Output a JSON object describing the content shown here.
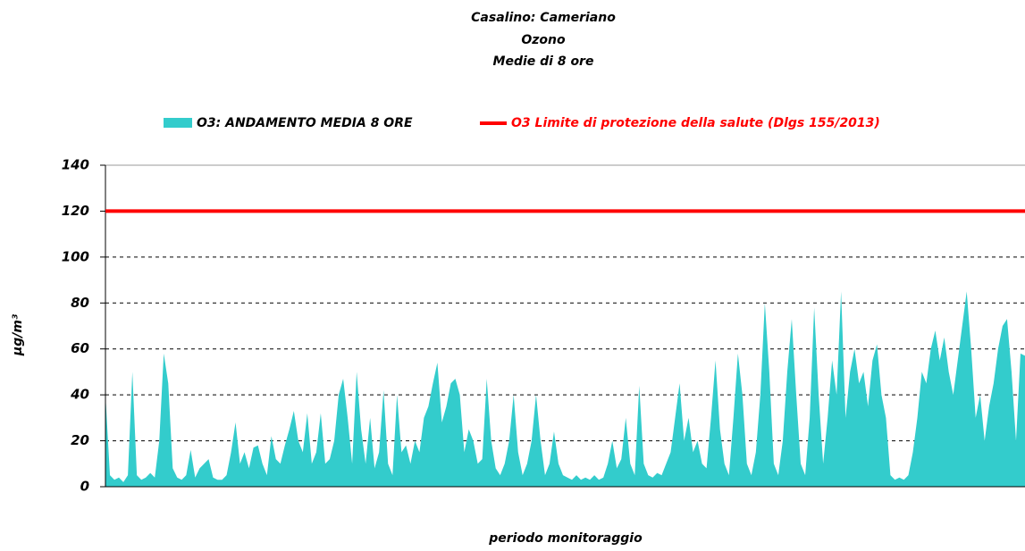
{
  "chart_data": {
    "type": "area",
    "title": "Casalino: Cameriano",
    "subtitle": [
      "Ozono",
      "Medie di 8 ore"
    ],
    "xlabel": "periodo monitoraggio",
    "ylabel": "µg/m³",
    "ylim": [
      0,
      140
    ],
    "yticks": [
      0,
      20,
      40,
      60,
      80,
      100,
      120,
      140
    ],
    "grid": true,
    "series": [
      {
        "name": "O3: ANDAMENTO MEDIA 8 ORE",
        "color": "#33cccc",
        "values": [
          40,
          5,
          3,
          4,
          2,
          5,
          50,
          5,
          3,
          4,
          6,
          4,
          20,
          58,
          45,
          8,
          4,
          3,
          5,
          16,
          4,
          8,
          10,
          12,
          4,
          3,
          3,
          5,
          15,
          28,
          10,
          15,
          8,
          17,
          18,
          10,
          5,
          22,
          12,
          10,
          18,
          25,
          33,
          20,
          15,
          32,
          10,
          15,
          32,
          10,
          12,
          20,
          40,
          47,
          30,
          10,
          50,
          25,
          10,
          30,
          8,
          15,
          42,
          10,
          5,
          40,
          15,
          18,
          10,
          20,
          15,
          30,
          35,
          45,
          54,
          28,
          35,
          45,
          47,
          40,
          15,
          25,
          20,
          10,
          12,
          47,
          20,
          8,
          5,
          10,
          20,
          40,
          15,
          5,
          10,
          20,
          40,
          20,
          5,
          10,
          24,
          10,
          5,
          4,
          3,
          5,
          3,
          4,
          3,
          5,
          3,
          4,
          10,
          20,
          8,
          12,
          30,
          10,
          5,
          44,
          10,
          5,
          4,
          6,
          5,
          10,
          15,
          30,
          45,
          20,
          30,
          15,
          20,
          10,
          8,
          30,
          55,
          25,
          10,
          5,
          30,
          58,
          40,
          10,
          5,
          15,
          40,
          80,
          50,
          10,
          5,
          20,
          50,
          73,
          40,
          10,
          5,
          30,
          78,
          40,
          10,
          30,
          55,
          40,
          85,
          30,
          50,
          60,
          45,
          50,
          35,
          55,
          62,
          40,
          30,
          5,
          3,
          4,
          3,
          5,
          15,
          30,
          50,
          45,
          60,
          68,
          55,
          65,
          50,
          40,
          55,
          70,
          85,
          60,
          30,
          40,
          20,
          35,
          45,
          60,
          70,
          73,
          50,
          20,
          58,
          57
        ]
      }
    ],
    "threshold": {
      "name": "O3 Limite di protezione della salute (Dlgs 155/2013)",
      "color": "#ff0000",
      "value": 120
    }
  }
}
